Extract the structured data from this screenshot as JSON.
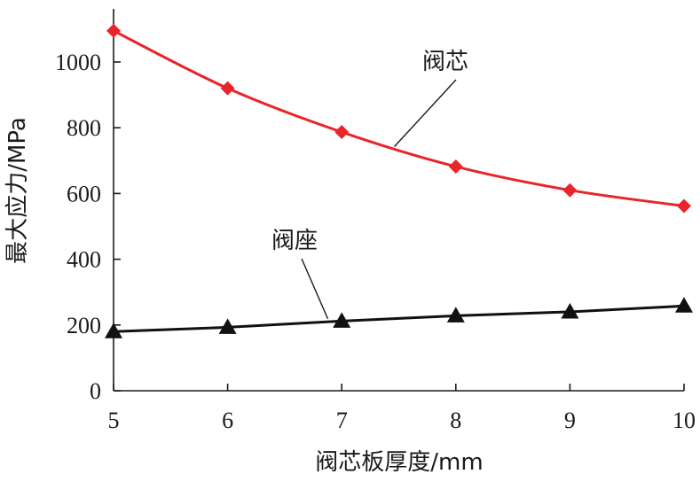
{
  "chart_data": {
    "type": "line",
    "xlabel": "阀芯板厚度/mm",
    "ylabel": "最大应力/MPa",
    "xlim": [
      5,
      10
    ],
    "ylim": [
      0,
      1100
    ],
    "x_ticks": [
      5,
      6,
      7,
      8,
      9,
      10
    ],
    "y_ticks": [
      0,
      200,
      400,
      600,
      800,
      1000
    ],
    "grid": false,
    "legend": "none",
    "series": [
      {
        "name": "阀芯",
        "x": [
          5,
          6,
          7,
          8,
          9,
          10
        ],
        "values": [
          1095,
          920,
          787,
          682,
          610,
          562
        ],
        "color": "#e8262a",
        "marker": "diamond"
      },
      {
        "name": "阀座",
        "x": [
          5,
          6,
          7,
          8,
          9,
          10
        ],
        "values": [
          180,
          193,
          212,
          228,
          240,
          258
        ],
        "color": "#111111",
        "marker": "triangle"
      }
    ]
  }
}
